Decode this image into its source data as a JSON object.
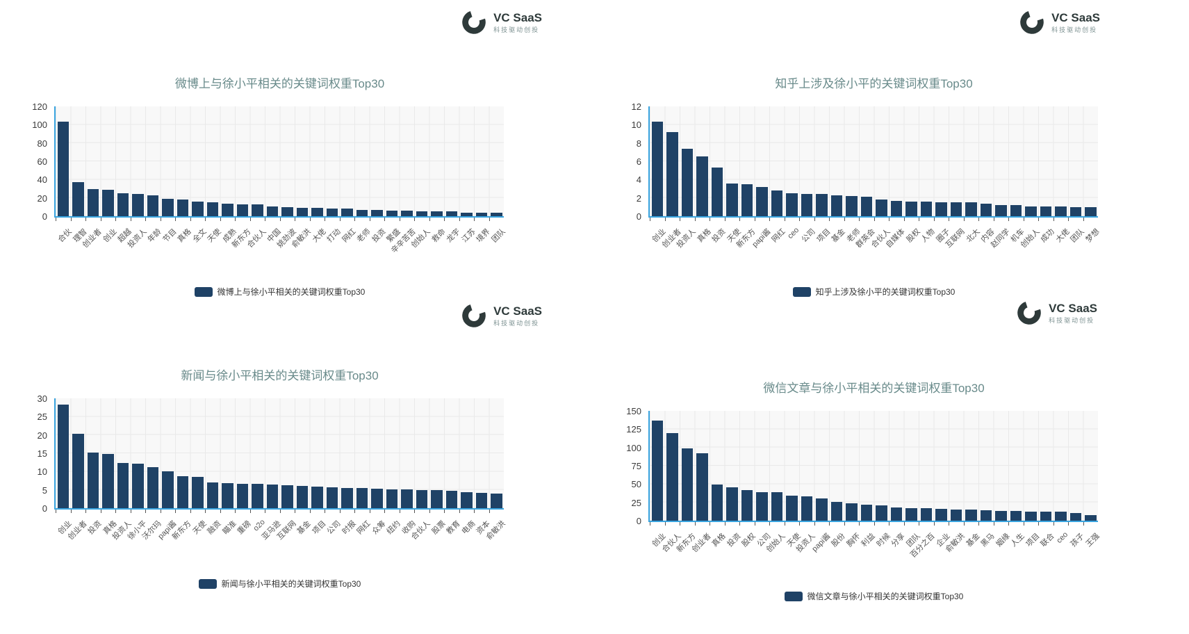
{
  "logo": {
    "brand": "VC SaaS",
    "subtitle": "科技驱动创投",
    "icon": "vcsaas-mark-icon",
    "color": "#2e3a3a"
  },
  "colors": {
    "bar": "#1f4266",
    "axis_line": "#3aa5e0",
    "title": "#688a8a",
    "plot_background": "#f8f8f8",
    "gridline": "#e9e9e9",
    "tick_label": "#3a3a3a",
    "category_label": "#555555",
    "legend_text": "#333333"
  },
  "chart_data": [
    {
      "type": "bar",
      "title": "微博上与徐小平相关的关键词权重Top30",
      "legend": "微博上与徐小平相关的关键词权重Top30",
      "legend_position": "bottom",
      "grid": true,
      "xlabel": "",
      "ylabel": "",
      "ylim": [
        0,
        120
      ],
      "yticks": [
        0,
        20,
        40,
        60,
        80,
        100,
        120
      ],
      "categories": [
        "合伙",
        "理智",
        "创业者",
        "创业",
        "超越",
        "投资人",
        "年龄",
        "节目",
        "真格",
        "全文",
        "天使",
        "成熟",
        "新东方",
        "合伙人",
        "中国",
        "姚劲波",
        "俞敏洪",
        "大佬",
        "打动",
        "网红",
        "老师",
        "投资",
        "繁盛",
        "辛辛苦苦",
        "创始人",
        "救命",
        "龙宇",
        "江苏",
        "境界",
        "团队"
      ],
      "values": [
        103,
        37,
        30,
        29,
        25,
        24,
        23,
        19,
        18,
        16,
        15,
        14,
        13,
        13,
        11,
        10,
        9,
        9,
        8,
        8,
        7,
        7,
        6,
        6,
        5,
        5,
        5,
        4,
        4,
        4
      ]
    },
    {
      "type": "bar",
      "title": "知乎上涉及徐小平的关键词权重Top30",
      "legend": "知乎上涉及徐小平的关键词权重Top30",
      "legend_position": "bottom",
      "grid": true,
      "xlabel": "",
      "ylabel": "",
      "ylim": [
        0,
        12
      ],
      "yticks": [
        0,
        2,
        4,
        6,
        8,
        10,
        12
      ],
      "categories": [
        "创业",
        "创业者",
        "投资人",
        "真格",
        "投资",
        "天使",
        "新东方",
        "papi酱",
        "网红",
        "ceo",
        "公司",
        "项目",
        "基金",
        "老师",
        "群英会",
        "合伙人",
        "自媒体",
        "股权",
        "人物",
        "圈子",
        "互联网",
        "北大",
        "内容",
        "赵同学",
        "机车",
        "创始人",
        "成功",
        "大佬",
        "团队",
        "梦想"
      ],
      "values": [
        10.3,
        9.2,
        7.4,
        6.5,
        5.3,
        3.6,
        3.5,
        3.2,
        2.8,
        2.5,
        2.4,
        2.4,
        2.3,
        2.2,
        2.1,
        1.8,
        1.7,
        1.6,
        1.6,
        1.5,
        1.5,
        1.5,
        1.4,
        1.2,
        1.2,
        1.1,
        1.1,
        1.1,
        1.0,
        1.0
      ]
    },
    {
      "type": "bar",
      "title": "新闻与徐小平相关的关键词权重Top30",
      "legend": "新闻与徐小平相关的关键词权重Top30",
      "legend_position": "bottom",
      "grid": true,
      "xlabel": "",
      "ylabel": "",
      "ylim": [
        0,
        30
      ],
      "yticks": [
        0,
        5,
        10,
        15,
        20,
        25,
        30
      ],
      "categories": [
        "创业",
        "创业者",
        "投资",
        "真格",
        "投资人",
        "徐小平",
        "沃尔玛",
        "papi酱",
        "新东方",
        "天使",
        "融资",
        "瞄准",
        "重磅",
        "o2o",
        "亚马逊",
        "互联网",
        "基金",
        "项目",
        "公司",
        "时报",
        "网红",
        "众筹",
        "纽约",
        "收购",
        "合伙人",
        "股票",
        "教育",
        "电商",
        "资本",
        "俞敏洪"
      ],
      "values": [
        28.2,
        20.3,
        15.2,
        14.8,
        12.4,
        12.1,
        11.3,
        10,
        8.7,
        8.5,
        7.1,
        6.9,
        6.7,
        6.6,
        6.5,
        6.2,
        6,
        5.8,
        5.7,
        5.6,
        5.5,
        5.3,
        5.2,
        5.1,
        5,
        4.9,
        4.8,
        4.4,
        4.1,
        4
      ]
    },
    {
      "type": "bar",
      "title": "微信文章与徐小平相关的关键词权重Top30",
      "legend": "微信文章与徐小平相关的关键词权重Top30",
      "legend_position": "bottom",
      "grid": true,
      "xlabel": "",
      "ylabel": "",
      "ylim": [
        0,
        150
      ],
      "yticks": [
        0,
        25,
        50,
        75,
        100,
        125,
        150
      ],
      "categories": [
        "创业",
        "合伙人",
        "新东方",
        "创业者",
        "真格",
        "投资",
        "股权",
        "公司",
        "创始人",
        "天使",
        "投资人",
        "papi酱",
        "股份",
        "胸怀",
        "利益",
        "时候",
        "分享",
        "团队",
        "百分之百",
        "企业",
        "俞敏洪",
        "基金",
        "黑马",
        "姻缘",
        "人生",
        "项目",
        "联合",
        "ceo",
        "孩子",
        "王强"
      ],
      "values": [
        137,
        120,
        99,
        92,
        49,
        46,
        42,
        39,
        39,
        34,
        33,
        30,
        26,
        24,
        22,
        21,
        18,
        17,
        17,
        16,
        15,
        15,
        14,
        13,
        13,
        12,
        12,
        12,
        10,
        8
      ]
    }
  ]
}
